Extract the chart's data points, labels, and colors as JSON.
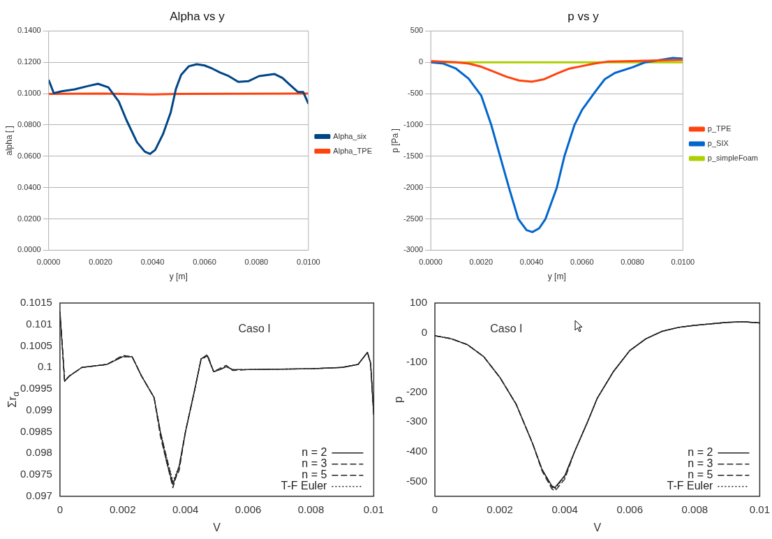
{
  "chart_data": [
    {
      "type": "line",
      "title": "Alpha vs y",
      "xlabel": "y [m]",
      "ylabel": "alpha [ ]",
      "xlim": [
        0,
        0.01
      ],
      "ylim": [
        0,
        0.14
      ],
      "xticks": [
        {
          "value": 0,
          "label": "0.0000"
        },
        {
          "value": 0.002,
          "label": "0.0020"
        },
        {
          "value": 0.004,
          "label": "0.0040"
        },
        {
          "value": 0.006,
          "label": "0.0060"
        },
        {
          "value": 0.008,
          "label": "0.0080"
        },
        {
          "value": 0.01,
          "label": "0.0100"
        }
      ],
      "yticks": [
        {
          "value": 0,
          "label": "0.0000"
        },
        {
          "value": 0.02,
          "label": "0.0200"
        },
        {
          "value": 0.04,
          "label": "0.0400"
        },
        {
          "value": 0.06,
          "label": "0.0600"
        },
        {
          "value": 0.08,
          "label": "0.0800"
        },
        {
          "value": 0.1,
          "label": "0.1000"
        },
        {
          "value": 0.12,
          "label": "0.1200"
        },
        {
          "value": 0.14,
          "label": "0.1400"
        }
      ],
      "grid": "y",
      "legend": "right",
      "marker": "none",
      "series": [
        {
          "name": "Alpha_six",
          "color": "#004586",
          "x": [
            0,
            0.0002,
            0.0005,
            0.001,
            0.0015,
            0.0019,
            0.0023,
            0.0027,
            0.003,
            0.0034,
            0.0037,
            0.0039,
            0.0041,
            0.0044,
            0.0047,
            0.0049,
            0.0051,
            0.0054,
            0.0057,
            0.006,
            0.0063,
            0.0066,
            0.0069,
            0.0073,
            0.0077,
            0.0081,
            0.0087,
            0.009,
            0.0093,
            0.0096,
            0.0098,
            0.01
          ],
          "values": [
            0.1088,
            0.1003,
            0.1015,
            0.1027,
            0.1048,
            0.1063,
            0.104,
            0.095,
            0.083,
            0.069,
            0.063,
            0.0615,
            0.064,
            0.074,
            0.088,
            0.103,
            0.112,
            0.1175,
            0.1188,
            0.118,
            0.116,
            0.1135,
            0.1115,
            0.1075,
            0.108,
            0.1112,
            0.1125,
            0.11,
            0.1055,
            0.101,
            0.101,
            0.0935
          ]
        },
        {
          "name": "Alpha_TPE",
          "color": "#ff420e",
          "x": [
            0,
            0.002,
            0.004,
            0.005,
            0.01
          ],
          "values": [
            0.0998,
            0.1001,
            0.0995,
            0.0998,
            0.1
          ]
        }
      ]
    },
    {
      "type": "line",
      "title": "p vs y",
      "xlabel": "y [m]",
      "ylabel": "p [Pa ]",
      "xlim": [
        0,
        0.01
      ],
      "ylim": [
        -3000,
        500
      ],
      "xticks": [
        {
          "value": 0,
          "label": "0.0000"
        },
        {
          "value": 0.002,
          "label": "0.0020"
        },
        {
          "value": 0.004,
          "label": "0.0040"
        },
        {
          "value": 0.006,
          "label": "0.0060"
        },
        {
          "value": 0.008,
          "label": "0.0080"
        },
        {
          "value": 0.01,
          "label": "0.0100"
        }
      ],
      "yticks": [
        -3000,
        -2500,
        -2000,
        -1500,
        -1000,
        -500,
        0,
        500
      ],
      "grid": "y",
      "legend": "right",
      "marker": "none",
      "series": [
        {
          "name": "p_TPE",
          "color": "#ff420e",
          "x": [
            0,
            0.001,
            0.0015,
            0.002,
            0.0025,
            0.003,
            0.0035,
            0.004,
            0.0045,
            0.005,
            0.0055,
            0.006,
            0.0065,
            0.007,
            0.008,
            0.009,
            0.01
          ],
          "values": [
            20,
            0,
            -20,
            -70,
            -150,
            -230,
            -290,
            -310,
            -270,
            -180,
            -100,
            -60,
            -20,
            10,
            20,
            30,
            40
          ]
        },
        {
          "name": "p_SIX",
          "color": "#0066cc",
          "x": [
            0,
            0.0005,
            0.001,
            0.0015,
            0.002,
            0.0024,
            0.00275,
            0.0031,
            0.00347,
            0.0038,
            0.00403,
            0.0043,
            0.00455,
            0.005,
            0.0053,
            0.0057,
            0.006,
            0.0065,
            0.0069,
            0.0073,
            0.008,
            0.0085,
            0.009,
            0.0096,
            0.01
          ],
          "values": [
            0,
            -20,
            -100,
            -260,
            -530,
            -1000,
            -1500,
            -2000,
            -2500,
            -2680,
            -2710,
            -2650,
            -2500,
            -2000,
            -1500,
            -1000,
            -760,
            -480,
            -270,
            -170,
            -80,
            0,
            30,
            70,
            60
          ]
        },
        {
          "name": "p_simpleFoam",
          "color": "#aecf00",
          "x": [
            0,
            0.01
          ],
          "values": [
            0,
            0
          ]
        }
      ]
    },
    {
      "type": "line",
      "xlabel": "V",
      "ylabel": "Σr$_{α}$",
      "xlim": [
        0,
        0.01
      ],
      "ylim": [
        0.097,
        0.1015
      ],
      "xticks": [
        0,
        0.002,
        0.004,
        0.006,
        0.008,
        0.01
      ],
      "yticks": [
        0.097,
        0.0975,
        0.098,
        0.0985,
        0.099,
        0.0995,
        0.1,
        0.1005,
        0.101,
        0.1015
      ],
      "legend": "bottom right",
      "marker": "none",
      "annotations": [
        "Caso I"
      ],
      "series": [
        {
          "name": "n = 2",
          "color": "#222222",
          "line_style": "solid",
          "x": [
            0,
            0.00015,
            0.0003,
            0.0007,
            0.0015,
            0.002,
            0.0023,
            0.0026,
            0.003,
            0.0032,
            0.0034,
            0.0036,
            0.0038,
            0.004,
            0.0043,
            0.0045,
            0.0047,
            0.0049,
            0.0051,
            0.0053,
            0.0055,
            0.006,
            0.008,
            0.009,
            0.0095,
            0.0098,
            0.0099,
            0.01
          ],
          "values": [
            0.1013,
            0.09968,
            0.0998,
            0.1,
            0.10007,
            0.10025,
            0.10025,
            0.0998,
            0.0993,
            0.0985,
            0.0978,
            0.09727,
            0.0977,
            0.0985,
            0.0995,
            0.1002,
            0.10027,
            0.0999,
            0.09995,
            0.10002,
            0.09995,
            0.09995,
            0.09997,
            0.1,
            0.10007,
            0.10035,
            0.1001,
            0.0989
          ]
        },
        {
          "name": "n = 3",
          "color": "#222222",
          "line_style": "dashed",
          "x": [
            0,
            0.00015,
            0.0003,
            0.0007,
            0.0015,
            0.002,
            0.0023,
            0.0026,
            0.003,
            0.0032,
            0.0034,
            0.0036,
            0.0038,
            0.004,
            0.0043,
            0.0045,
            0.0047,
            0.0049,
            0.0051,
            0.0053,
            0.0055,
            0.006,
            0.008,
            0.009,
            0.0095,
            0.0098,
            0.0099,
            0.01
          ],
          "values": [
            0.1013,
            0.09968,
            0.0998,
            0.1,
            0.10007,
            0.10028,
            0.10025,
            0.0998,
            0.0993,
            0.0985,
            0.0979,
            0.0973,
            0.0976,
            0.0985,
            0.0995,
            0.1002,
            0.1003,
            0.0999,
            0.09998,
            0.10005,
            0.09993,
            0.09995,
            0.09997,
            0.1,
            0.10007,
            0.10035,
            0.1001,
            0.0989
          ]
        },
        {
          "name": "n = 5",
          "color": "#222222",
          "line_style": "dashed",
          "x": [
            0,
            0.00015,
            0.0003,
            0.0007,
            0.0015,
            0.002,
            0.0023,
            0.0026,
            0.003,
            0.0032,
            0.0034,
            0.0036,
            0.0038,
            0.004,
            0.0043,
            0.0045,
            0.0047,
            0.0049,
            0.0051,
            0.0053,
            0.0055,
            0.006,
            0.008,
            0.009,
            0.0095,
            0.0098,
            0.0099,
            0.01
          ],
          "values": [
            0.1013,
            0.09968,
            0.0998,
            0.1,
            0.10007,
            0.10025,
            0.10025,
            0.0998,
            0.0993,
            0.0984,
            0.0978,
            0.0972,
            0.0977,
            0.0985,
            0.0995,
            0.1002,
            0.10027,
            0.0999,
            0.09995,
            0.10002,
            0.09995,
            0.09995,
            0.09997,
            0.1,
            0.10007,
            0.10035,
            0.1001,
            0.0989
          ]
        },
        {
          "name": "T-F Euler",
          "color": "#222222",
          "line_style": "dotted",
          "x": [
            0,
            0.00015,
            0.0003,
            0.0007,
            0.0015,
            0.002,
            0.0023,
            0.0026,
            0.003,
            0.0032,
            0.0034,
            0.0036,
            0.0038,
            0.004,
            0.0043,
            0.0045,
            0.0047,
            0.0049,
            0.0051,
            0.0053,
            0.0055,
            0.006,
            0.008,
            0.009,
            0.0095,
            0.0098,
            0.0099,
            0.01
          ],
          "values": [
            0.1013,
            0.09968,
            0.0998,
            0.1,
            0.10007,
            0.10025,
            0.10025,
            0.0998,
            0.0993,
            0.0985,
            0.0979,
            0.09735,
            0.0977,
            0.0985,
            0.0995,
            0.1002,
            0.10025,
            0.0999,
            0.09995,
            0.10002,
            0.09995,
            0.09995,
            0.09997,
            0.1,
            0.10007,
            0.10035,
            0.1001,
            0.0989
          ]
        }
      ]
    },
    {
      "type": "line",
      "xlabel": "V",
      "ylabel": "p",
      "xlim": [
        0,
        0.01
      ],
      "ylim": [
        -550,
        100
      ],
      "xticks": [
        0,
        0.002,
        0.004,
        0.006,
        0.008,
        0.01
      ],
      "yticks": [
        -500,
        -400,
        -300,
        -200,
        -100,
        0,
        100
      ],
      "legend": "bottom right",
      "marker": "none",
      "annotations": [
        "Caso I"
      ],
      "series": [
        {
          "name": "n = 2",
          "color": "#222222",
          "line_style": "solid",
          "x": [
            0,
            0.0005,
            0.001,
            0.0015,
            0.002,
            0.0025,
            0.003,
            0.0033,
            0.0036,
            0.0037,
            0.004,
            0.0043,
            0.0047,
            0.005,
            0.0055,
            0.006,
            0.0065,
            0.007,
            0.0075,
            0.008,
            0.009,
            0.0095,
            0.01
          ],
          "values": [
            -10,
            -20,
            -40,
            -80,
            -150,
            -240,
            -370,
            -460,
            -515,
            -520,
            -480,
            -400,
            -300,
            -220,
            -130,
            -60,
            -20,
            5,
            18,
            25,
            35,
            37,
            33
          ]
        },
        {
          "name": "n = 3",
          "color": "#222222",
          "line_style": "dashed",
          "x": [
            0,
            0.0005,
            0.001,
            0.0015,
            0.002,
            0.0025,
            0.003,
            0.0033,
            0.0036,
            0.0037,
            0.004,
            0.0043,
            0.0047,
            0.005,
            0.0055,
            0.006,
            0.0065,
            0.007,
            0.0075,
            0.008,
            0.009,
            0.0095,
            0.01
          ],
          "values": [
            -10,
            -20,
            -40,
            -80,
            -150,
            -240,
            -370,
            -460,
            -518,
            -522,
            -482,
            -400,
            -300,
            -220,
            -130,
            -60,
            -20,
            5,
            18,
            25,
            35,
            37,
            33
          ]
        },
        {
          "name": "n = 5",
          "color": "#222222",
          "line_style": "dashed",
          "x": [
            0,
            0.0005,
            0.001,
            0.0015,
            0.002,
            0.0025,
            0.003,
            0.0033,
            0.0036,
            0.0037,
            0.004,
            0.0043,
            0.0047,
            0.005,
            0.0055,
            0.006,
            0.0065,
            0.007,
            0.0075,
            0.008,
            0.009,
            0.0095,
            0.01
          ],
          "values": [
            -10,
            -20,
            -40,
            -80,
            -150,
            -240,
            -370,
            -465,
            -525,
            -532,
            -492,
            -400,
            -300,
            -220,
            -130,
            -60,
            -20,
            5,
            18,
            25,
            35,
            37,
            33
          ]
        },
        {
          "name": "T-F Euler",
          "color": "#222222",
          "line_style": "dotted",
          "x": [
            0,
            0.0005,
            0.001,
            0.0015,
            0.002,
            0.0025,
            0.003,
            0.0033,
            0.0036,
            0.0037,
            0.004,
            0.0043,
            0.0047,
            0.005,
            0.0055,
            0.006,
            0.0065,
            0.007,
            0.0075,
            0.008,
            0.009,
            0.0095,
            0.01
          ],
          "values": [
            -10,
            -20,
            -40,
            -80,
            -150,
            -240,
            -370,
            -460,
            -520,
            -525,
            -485,
            -400,
            -300,
            -220,
            -130,
            -60,
            -20,
            5,
            18,
            25,
            35,
            37,
            33
          ]
        }
      ]
    }
  ]
}
